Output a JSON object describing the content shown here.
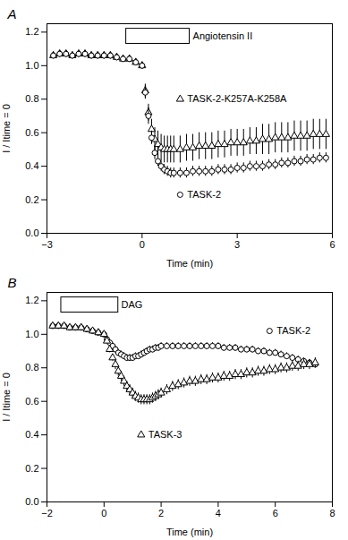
{
  "chart_data": [
    {
      "type": "scatter",
      "title": "A",
      "xlabel": "Time (min)",
      "ylabel": "I / Itime = 0",
      "color": "#000000",
      "xlim": [
        -3,
        6
      ],
      "ylim": [
        0.0,
        1.25
      ],
      "xticks": [
        -3,
        0,
        3,
        6
      ],
      "yticks": [
        {
          "value": 0.0,
          "label": "0.0"
        },
        0.2,
        0.4,
        0.6,
        0.8,
        {
          "value": 1.0,
          "label": "1.0"
        },
        1.2
      ],
      "grid": false,
      "annotations": [
        {
          "text": "Angiotensin II",
          "x": 1.6,
          "y": 1.175,
          "box": {
            "x": [
              -0.5,
              1.5
            ],
            "y": [
              1.13,
              1.22
            ]
          }
        },
        {
          "text": "TASK-2-K257A-K258A",
          "x": 1.2,
          "y": 0.8,
          "marker": "triangle"
        },
        {
          "text": "TASK-2",
          "x": 1.2,
          "y": 0.23,
          "marker": "circle"
        }
      ],
      "series": [
        {
          "name": "TASK-2-K257A-K258A",
          "marker": "triangle",
          "x": [
            -2.8,
            -2.6,
            -2.4,
            -2.2,
            -2.0,
            -1.8,
            -1.6,
            -1.4,
            -1.2,
            -1.0,
            -0.8,
            -0.6,
            -0.4,
            -0.2,
            0.0,
            0.1,
            0.2,
            0.3,
            0.4,
            0.5,
            0.6,
            0.7,
            0.8,
            0.9,
            1.0,
            1.2,
            1.4,
            1.6,
            1.8,
            2.0,
            2.2,
            2.4,
            2.6,
            2.8,
            3.0,
            3.2,
            3.4,
            3.6,
            3.8,
            4.0,
            4.2,
            4.4,
            4.6,
            4.8,
            5.0,
            5.2,
            5.4,
            5.6,
            5.8
          ],
          "values": [
            1.06,
            1.07,
            1.07,
            1.06,
            1.07,
            1.07,
            1.06,
            1.06,
            1.06,
            1.06,
            1.05,
            1.04,
            1.04,
            1.02,
            1.0,
            0.85,
            0.72,
            0.62,
            0.56,
            0.53,
            0.51,
            0.5,
            0.5,
            0.5,
            0.5,
            0.5,
            0.51,
            0.51,
            0.52,
            0.52,
            0.52,
            0.53,
            0.53,
            0.54,
            0.54,
            0.54,
            0.55,
            0.55,
            0.56,
            0.56,
            0.57,
            0.57,
            0.57,
            0.58,
            0.58,
            0.58,
            0.59,
            0.59,
            0.59
          ],
          "err": [
            0.02,
            0.02,
            0.02,
            0.02,
            0.02,
            0.02,
            0.02,
            0.02,
            0.02,
            0.02,
            0.02,
            0.02,
            0.02,
            0.02,
            0.02,
            0.04,
            0.05,
            0.06,
            0.07,
            0.08,
            0.08,
            0.08,
            0.08,
            0.08,
            0.08,
            0.08,
            0.08,
            0.08,
            0.08,
            0.08,
            0.08,
            0.08,
            0.08,
            0.08,
            0.08,
            0.08,
            0.08,
            0.08,
            0.09,
            0.09,
            0.09,
            0.09,
            0.09,
            0.09,
            0.09,
            0.09,
            0.09,
            0.09,
            0.09
          ]
        },
        {
          "name": "TASK-2",
          "marker": "circle",
          "x": [
            -2.8,
            -2.6,
            -2.4,
            -2.2,
            -2.0,
            -1.8,
            -1.6,
            -1.4,
            -1.2,
            -1.0,
            -0.8,
            -0.6,
            -0.4,
            -0.2,
            0.0,
            0.1,
            0.2,
            0.3,
            0.4,
            0.5,
            0.6,
            0.7,
            0.8,
            0.9,
            1.0,
            1.2,
            1.4,
            1.6,
            1.8,
            2.0,
            2.2,
            2.4,
            2.6,
            2.8,
            3.0,
            3.2,
            3.4,
            3.6,
            3.8,
            4.0,
            4.2,
            4.4,
            4.6,
            4.8,
            5.0,
            5.2,
            5.4,
            5.6,
            5.8
          ],
          "values": [
            1.06,
            1.07,
            1.07,
            1.06,
            1.07,
            1.07,
            1.06,
            1.06,
            1.06,
            1.06,
            1.05,
            1.04,
            1.04,
            1.02,
            1.0,
            0.84,
            0.7,
            0.57,
            0.48,
            0.43,
            0.4,
            0.38,
            0.37,
            0.36,
            0.36,
            0.36,
            0.36,
            0.37,
            0.37,
            0.37,
            0.37,
            0.38,
            0.38,
            0.38,
            0.39,
            0.39,
            0.4,
            0.4,
            0.4,
            0.41,
            0.41,
            0.42,
            0.42,
            0.43,
            0.43,
            0.44,
            0.44,
            0.45,
            0.45
          ],
          "err": [
            0.02,
            0.02,
            0.02,
            0.02,
            0.02,
            0.02,
            0.02,
            0.02,
            0.02,
            0.02,
            0.02,
            0.02,
            0.02,
            0.02,
            0.02,
            0.04,
            0.05,
            0.04,
            0.04,
            0.03,
            0.03,
            0.03,
            0.03,
            0.03,
            0.03,
            0.03,
            0.03,
            0.03,
            0.03,
            0.03,
            0.03,
            0.03,
            0.03,
            0.03,
            0.03,
            0.03,
            0.03,
            0.03,
            0.03,
            0.03,
            0.03,
            0.03,
            0.03,
            0.03,
            0.03,
            0.03,
            0.03,
            0.03,
            0.03
          ]
        }
      ]
    },
    {
      "type": "scatter",
      "title": "B",
      "xlabel": "Time (min)",
      "ylabel": "I / Itime = 0",
      "color": "#000000",
      "xlim": [
        -2,
        8
      ],
      "ylim": [
        0.0,
        1.25
      ],
      "xticks": [
        -2,
        0,
        2,
        4,
        6,
        8
      ],
      "yticks": [
        {
          "value": 0.0,
          "label": "0.0"
        },
        0.2,
        0.4,
        0.6,
        0.8,
        {
          "value": 1.0,
          "label": "1.0"
        },
        1.2
      ],
      "grid": false,
      "annotations": [
        {
          "text": "DAG",
          "x": 0.6,
          "y": 1.175,
          "box": {
            "x": [
              -1.5,
              0.5
            ],
            "y": [
              1.13,
              1.22
            ]
          }
        },
        {
          "text": "TASK-2",
          "x": 5.8,
          "y": 1.02,
          "marker": "circle"
        },
        {
          "text": "TASK-3",
          "x": 1.3,
          "y": 0.4,
          "marker": "triangle"
        }
      ],
      "series": [
        {
          "name": "TASK-2",
          "marker": "circle",
          "x": [
            -1.8,
            -1.6,
            -1.4,
            -1.2,
            -1.0,
            -0.8,
            -0.6,
            -0.4,
            -0.2,
            0.0,
            0.1,
            0.2,
            0.3,
            0.4,
            0.5,
            0.6,
            0.7,
            0.8,
            0.9,
            1.0,
            1.1,
            1.2,
            1.3,
            1.4,
            1.5,
            1.6,
            1.7,
            1.8,
            1.9,
            2.0,
            2.2,
            2.4,
            2.6,
            2.8,
            3.0,
            3.2,
            3.4,
            3.6,
            3.8,
            4.0,
            4.2,
            4.4,
            4.6,
            4.8,
            5.0,
            5.2,
            5.4,
            5.6,
            5.8,
            6.0,
            6.2,
            6.4,
            6.6,
            6.8,
            7.0,
            7.2,
            7.4
          ],
          "values": [
            1.05,
            1.05,
            1.05,
            1.04,
            1.04,
            1.04,
            1.03,
            1.02,
            1.01,
            1.0,
            0.97,
            0.95,
            0.93,
            0.91,
            0.89,
            0.88,
            0.87,
            0.86,
            0.86,
            0.86,
            0.87,
            0.87,
            0.88,
            0.89,
            0.9,
            0.91,
            0.91,
            0.92,
            0.92,
            0.93,
            0.93,
            0.93,
            0.93,
            0.93,
            0.93,
            0.93,
            0.93,
            0.93,
            0.93,
            0.93,
            0.92,
            0.92,
            0.92,
            0.91,
            0.91,
            0.91,
            0.9,
            0.9,
            0.89,
            0.89,
            0.88,
            0.87,
            0.86,
            0.85,
            0.84,
            0.83,
            0.82
          ],
          "err": [
            0.01,
            0.01,
            0.01,
            0.01,
            0.01,
            0.01,
            0.01,
            0.01,
            0.01,
            0.01,
            0.01,
            0.02,
            0.02,
            0.02,
            0.02,
            0.02,
            0.02,
            0.02,
            0.02,
            0.02,
            0.02,
            0.02,
            0.02,
            0.02,
            0.02,
            0.02,
            0.02,
            0.02,
            0.02,
            0.02,
            0.02,
            0.02,
            0.02,
            0.02,
            0.02,
            0.02,
            0.02,
            0.02,
            0.02,
            0.02,
            0.02,
            0.02,
            0.02,
            0.02,
            0.02,
            0.02,
            0.02,
            0.02,
            0.02,
            0.02,
            0.02,
            0.02,
            0.02,
            0.02,
            0.02,
            0.02,
            0.02
          ]
        },
        {
          "name": "TASK-3",
          "marker": "triangle",
          "x": [
            -1.8,
            -1.6,
            -1.4,
            -1.2,
            -1.0,
            -0.8,
            -0.6,
            -0.4,
            -0.2,
            0.0,
            0.1,
            0.2,
            0.3,
            0.4,
            0.5,
            0.6,
            0.7,
            0.8,
            0.9,
            1.0,
            1.1,
            1.2,
            1.3,
            1.4,
            1.5,
            1.6,
            1.7,
            1.8,
            1.9,
            2.0,
            2.2,
            2.4,
            2.6,
            2.8,
            3.0,
            3.2,
            3.4,
            3.6,
            3.8,
            4.0,
            4.2,
            4.4,
            4.6,
            4.8,
            5.0,
            5.2,
            5.4,
            5.6,
            5.8,
            6.0,
            6.2,
            6.4,
            6.6,
            6.8,
            7.0,
            7.2,
            7.4
          ],
          "values": [
            1.05,
            1.05,
            1.05,
            1.04,
            1.04,
            1.04,
            1.03,
            1.02,
            1.01,
            1.0,
            0.96,
            0.91,
            0.86,
            0.82,
            0.78,
            0.75,
            0.72,
            0.69,
            0.67,
            0.65,
            0.63,
            0.62,
            0.61,
            0.61,
            0.61,
            0.61,
            0.62,
            0.63,
            0.64,
            0.65,
            0.67,
            0.69,
            0.7,
            0.71,
            0.72,
            0.72,
            0.73,
            0.73,
            0.74,
            0.74,
            0.75,
            0.75,
            0.76,
            0.76,
            0.77,
            0.77,
            0.78,
            0.78,
            0.79,
            0.79,
            0.8,
            0.8,
            0.81,
            0.81,
            0.82,
            0.82,
            0.83
          ],
          "err": [
            0.01,
            0.01,
            0.01,
            0.01,
            0.01,
            0.01,
            0.01,
            0.01,
            0.01,
            0.01,
            0.01,
            0.02,
            0.02,
            0.03,
            0.03,
            0.03,
            0.03,
            0.03,
            0.03,
            0.03,
            0.03,
            0.03,
            0.03,
            0.03,
            0.03,
            0.03,
            0.03,
            0.03,
            0.03,
            0.03,
            0.03,
            0.03,
            0.03,
            0.03,
            0.03,
            0.03,
            0.03,
            0.03,
            0.03,
            0.03,
            0.03,
            0.03,
            0.03,
            0.03,
            0.03,
            0.03,
            0.03,
            0.03,
            0.03,
            0.03,
            0.03,
            0.03,
            0.03,
            0.03,
            0.03,
            0.03,
            0.03
          ]
        }
      ]
    }
  ]
}
